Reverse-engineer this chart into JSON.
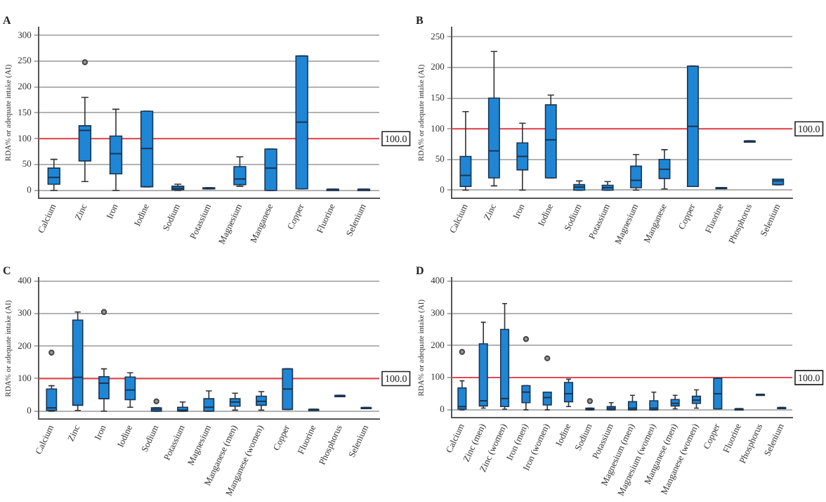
{
  "chart_data": [
    {
      "type": "box",
      "title": "A",
      "ylabel": "RDA% or adequate intake (AI)",
      "color": "#1f86d6",
      "grid": "y",
      "ylim": [
        -15,
        315
      ],
      "yticks": [
        0,
        50,
        100,
        150,
        200,
        250,
        300
      ],
      "categories": [
        "Calcium",
        "Zinc",
        "Iron",
        "Iodine",
        "Sodium",
        "Potassium",
        "Magnesium",
        "Manganese",
        "Copper",
        "Fluorine",
        "Selenium"
      ],
      "boxes": [
        {
          "low": 0,
          "q1": 12,
          "median": 25,
          "q3": 43,
          "high": 60
        },
        {
          "low": 17,
          "q1": 57,
          "median": 116,
          "q3": 125,
          "high": 180,
          "outliers": [
            248
          ]
        },
        {
          "low": 0,
          "q1": 32,
          "median": 71,
          "q3": 105,
          "high": 157
        },
        {
          "low": 7,
          "q1": 7,
          "median": 81,
          "q3": 153,
          "high": 153
        },
        {
          "low": 0,
          "q1": 1,
          "median": 4,
          "q3": 8,
          "high": 12
        },
        {
          "low": 3,
          "q1": 3,
          "median": 4,
          "q3": 5,
          "high": 5
        },
        {
          "low": 8,
          "q1": 11,
          "median": 22,
          "q3": 46,
          "high": 65
        },
        {
          "low": 0,
          "q1": 0,
          "median": 43,
          "q3": 80,
          "high": 80
        },
        {
          "low": 3,
          "q1": 3,
          "median": 132,
          "q3": 260,
          "high": 260
        },
        {
          "low": 2,
          "q1": 2,
          "median": 2,
          "q3": 2,
          "high": 2
        },
        {
          "low": 2,
          "q1": 2,
          "median": 2,
          "q3": 2,
          "high": 2
        }
      ],
      "ref_lines": [
        {
          "axis": "y",
          "value": 100,
          "label": "100.0",
          "color": "#e8474f"
        }
      ]
    },
    {
      "type": "box",
      "title": "B",
      "ylabel": "RDA% or adequate intake (AI)",
      "color": "#1f86d6",
      "grid": "y",
      "ylim": [
        -13,
        265
      ],
      "yticks": [
        0,
        50,
        100,
        150,
        200,
        250
      ],
      "categories": [
        "Calcium",
        "Zinc",
        "Iron",
        "Iodine",
        "Sodium",
        "Potassium",
        "Magnesium",
        "Manganese",
        "Copper",
        "Fluorine",
        "Phosphorus",
        "Selenium"
      ],
      "boxes": [
        {
          "low": 0,
          "q1": 6,
          "median": 24,
          "q3": 55,
          "high": 128
        },
        {
          "low": 7,
          "q1": 20,
          "median": 64,
          "q3": 150,
          "high": 226
        },
        {
          "low": 0,
          "q1": 33,
          "median": 55,
          "q3": 77,
          "high": 109
        },
        {
          "low": 20,
          "q1": 20,
          "median": 82,
          "q3": 139,
          "high": 155
        },
        {
          "low": 0,
          "q1": 0,
          "median": 5,
          "q3": 9,
          "high": 15
        },
        {
          "low": 0,
          "q1": 0,
          "median": 4,
          "q3": 8,
          "high": 14
        },
        {
          "low": 0,
          "q1": 4,
          "median": 16,
          "q3": 39,
          "high": 58
        },
        {
          "low": 2,
          "q1": 19,
          "median": 34,
          "q3": 50,
          "high": 66
        },
        {
          "low": 6,
          "q1": 6,
          "median": 104,
          "q3": 202,
          "high": 202
        },
        {
          "low": 4,
          "q1": 4,
          "median": 4,
          "q3": 4,
          "high": 4
        },
        {
          "low": 80,
          "q1": 80,
          "median": 80,
          "q3": 80,
          "high": 80
        },
        {
          "low": 9,
          "q1": 9,
          "median": 15,
          "q3": 18,
          "high": 18
        }
      ],
      "ref_lines": [
        {
          "axis": "y",
          "value": 100,
          "label": "100.0",
          "color": "#e8474f"
        }
      ]
    },
    {
      "type": "box",
      "title": "C",
      "ylabel": "RDA% or adequate intake (AI)",
      "color": "#1f86d6",
      "grid": "y",
      "ylim": [
        -25,
        410
      ],
      "yticks": [
        0,
        100,
        200,
        300,
        400
      ],
      "categories": [
        "Calcium",
        "Zinc",
        "Iron",
        "Iodine",
        "Sodium",
        "Potassium",
        "Magnesium",
        "Manganese (men)",
        "Manganese (women)",
        "Copper",
        "Fluorine",
        "Phosphorus",
        "Selenium"
      ],
      "boxes": [
        {
          "low": 0,
          "q1": 2,
          "median": 10,
          "q3": 68,
          "high": 78,
          "outliers": [
            180
          ]
        },
        {
          "low": 2,
          "q1": 18,
          "median": 104,
          "q3": 280,
          "high": 305
        },
        {
          "low": 0,
          "q1": 38,
          "median": 86,
          "q3": 106,
          "high": 130,
          "outliers": [
            305
          ]
        },
        {
          "low": 12,
          "q1": 35,
          "median": 65,
          "q3": 105,
          "high": 118
        },
        {
          "low": 0,
          "q1": 0,
          "median": 5,
          "q3": 10,
          "high": 10,
          "outliers": [
            30
          ]
        },
        {
          "low": 0,
          "q1": 0,
          "median": 3,
          "q3": 12,
          "high": 28
        },
        {
          "low": 0,
          "q1": 0,
          "median": 12,
          "q3": 38,
          "high": 62
        },
        {
          "low": 3,
          "q1": 15,
          "median": 28,
          "q3": 38,
          "high": 55
        },
        {
          "low": 3,
          "q1": 18,
          "median": 30,
          "q3": 46,
          "high": 60
        },
        {
          "low": 5,
          "q1": 5,
          "median": 68,
          "q3": 130,
          "high": 130
        },
        {
          "low": 5,
          "q1": 5,
          "median": 5,
          "q3": 5,
          "high": 5
        },
        {
          "low": 48,
          "q1": 48,
          "median": 48,
          "q3": 48,
          "high": 48
        },
        {
          "low": 9,
          "q1": 9,
          "median": 10,
          "q3": 11,
          "high": 11
        }
      ],
      "ref_lines": [
        {
          "axis": "y",
          "value": 100,
          "label": "100.0",
          "color": "#e8474f"
        }
      ]
    },
    {
      "type": "box",
      "title": "D",
      "ylabel": "RDA% or adequate intake (AI)",
      "color": "#1f86d6",
      "grid": "y",
      "ylim": [
        -25,
        410
      ],
      "yticks": [
        0,
        100,
        200,
        300,
        400
      ],
      "categories": [
        "Calcium",
        "Zinc (men)",
        "Zinc (women)",
        "Iron (men)",
        "Iron (women)",
        "Iodine",
        "Sodium",
        "Potassium",
        "Magnesium (men)",
        "Magnesium (women)",
        "Manganese (men)",
        "Manganese (women)",
        "Copper",
        "Fluorine",
        "Phosphorus",
        "Selenium"
      ],
      "boxes": [
        {
          "low": 0,
          "q1": 2,
          "median": 10,
          "q3": 68,
          "high": 90,
          "outliers": [
            180
          ]
        },
        {
          "low": 5,
          "q1": 12,
          "median": 28,
          "q3": 205,
          "high": 272
        },
        {
          "low": 2,
          "q1": 10,
          "median": 35,
          "q3": 250,
          "high": 330
        },
        {
          "low": 0,
          "q1": 22,
          "median": 55,
          "q3": 75,
          "high": 75,
          "outliers": [
            220
          ]
        },
        {
          "low": 0,
          "q1": 15,
          "median": 38,
          "q3": 55,
          "high": 55,
          "outliers": [
            160
          ]
        },
        {
          "low": 10,
          "q1": 25,
          "median": 50,
          "q3": 85,
          "high": 95
        },
        {
          "low": 0,
          "q1": 0,
          "median": 2,
          "q3": 5,
          "high": 5,
          "outliers": [
            27
          ]
        },
        {
          "low": 0,
          "q1": 0,
          "median": 5,
          "q3": 10,
          "high": 22
        },
        {
          "low": 0,
          "q1": 0,
          "median": 5,
          "q3": 25,
          "high": 45
        },
        {
          "low": 0,
          "q1": 0,
          "median": 5,
          "q3": 28,
          "high": 55
        },
        {
          "low": 3,
          "q1": 12,
          "median": 20,
          "q3": 32,
          "high": 45
        },
        {
          "low": 5,
          "q1": 20,
          "median": 30,
          "q3": 42,
          "high": 62
        },
        {
          "low": 3,
          "q1": 3,
          "median": 50,
          "q3": 98,
          "high": 98
        },
        {
          "low": 3,
          "q1": 3,
          "median": 3,
          "q3": 3,
          "high": 3
        },
        {
          "low": 48,
          "q1": 48,
          "median": 48,
          "q3": 48,
          "high": 48
        },
        {
          "low": 4,
          "q1": 4,
          "median": 5,
          "q3": 7,
          "high": 7
        }
      ],
      "ref_lines": [
        {
          "axis": "y",
          "value": 100,
          "label": "100.0",
          "color": "#e8474f"
        }
      ]
    }
  ]
}
